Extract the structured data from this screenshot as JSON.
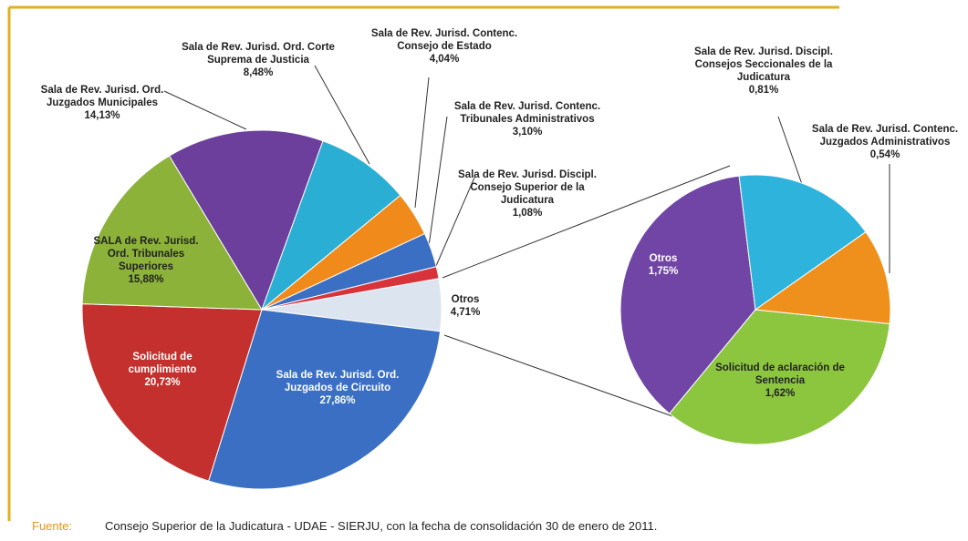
{
  "chart_data": [
    {
      "type": "pie",
      "categories": [
        "Otros",
        "Sala de Rev. Jurisd. Ord.\nJuzgados de Circuito",
        "Solicitud de\ncumplimiento",
        "SALA de Rev. Jurisd.\nOrd. Tribunales\nSuperiores",
        "Sala de Rev. Jurisd. Ord.\nJuzgados Municipales",
        "Sala de Rev. Jurisd. Ord. Corte\nSuprema de Justicia",
        "Sala de Rev. Jurisd. Contenc.\nConsejo de Estado",
        "Sala de Rev. Jurisd. Contenc.\nTribunales Administrativos",
        "Sala de Rev. Jurisd. Discipl.\nConsejo Superior de la\nJudicatura"
      ],
      "values": [
        4.71,
        27.86,
        20.73,
        15.88,
        14.13,
        8.48,
        4.04,
        3.1,
        1.08
      ],
      "value_labels": [
        "4,71%",
        "27,86%",
        "20,73%",
        "15,88%",
        "14,13%",
        "8,48%",
        "4,04%",
        "3,10%",
        "1,08%"
      ],
      "colors": [
        "#dce4f0",
        "#3a6fc4",
        "#c3302d",
        "#8cb23a",
        "#6b3f9b",
        "#2aaed3",
        "#f08a1a",
        "#3a6fc4",
        "#d8333a"
      ]
    },
    {
      "type": "pie",
      "categories": [
        "Solicitud de aclaración de\nSentencia",
        "Otros",
        "Sala de Rev. Jurisd. Discipl.\nConsejos Seccionales de la\nJudicatura",
        "Sala de Rev. Jurisd. Contenc.\nJuzgados Administrativos"
      ],
      "values": [
        1.62,
        1.75,
        0.81,
        0.54
      ],
      "value_labels": [
        "1,62%",
        "1,75%",
        "0,81%",
        "0,54%"
      ],
      "colors": [
        "#8cc63f",
        "#7045a5",
        "#2eb3dc",
        "#f0901c"
      ]
    }
  ],
  "footer": {
    "label": "Fuente:",
    "text": "Consejo Superior de la Judicatura - UDAE - SIERJU, con la fecha de consolidación 30 de enero de 2011."
  }
}
